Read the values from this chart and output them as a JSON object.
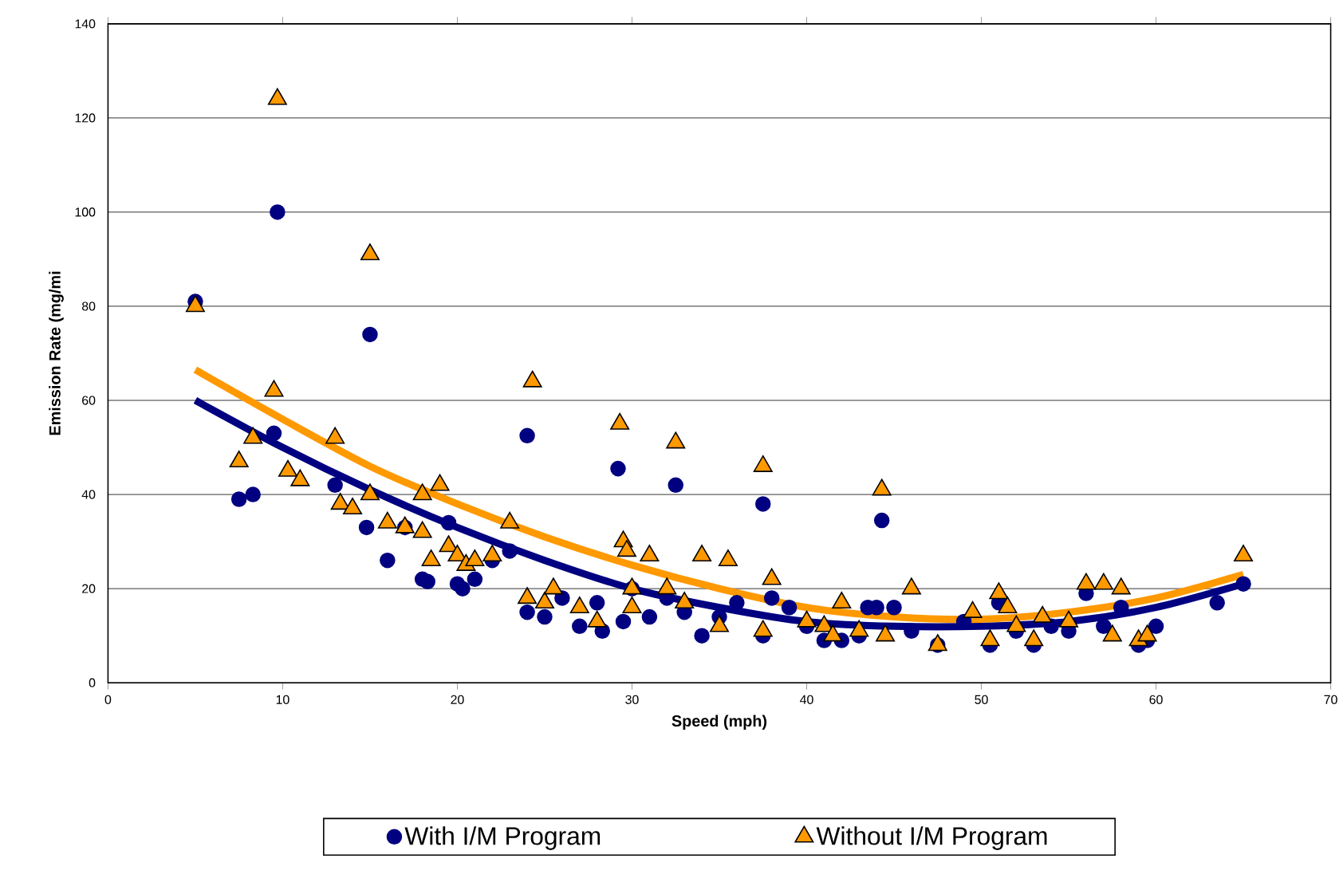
{
  "chart_data": {
    "type": "scatter",
    "xlabel": "Speed (mph)",
    "ylabel": "Emission Rate (mg/mi",
    "xlim": [
      0,
      70
    ],
    "ylim": [
      0,
      140
    ],
    "xticks": [
      0,
      10,
      20,
      30,
      40,
      50,
      60,
      70
    ],
    "yticks": [
      0,
      20,
      40,
      60,
      80,
      100,
      120,
      140
    ],
    "grid": "y",
    "legend": "bottom",
    "series": [
      {
        "name": "With I/M Program",
        "marker": "circle",
        "color": "#000080",
        "x": [
          5,
          7.5,
          8.3,
          9.5,
          9.7,
          15,
          24,
          29.2,
          32.5,
          37.5,
          44.3,
          13,
          14.8,
          16,
          17,
          18,
          18.3,
          19.5,
          20,
          20.3,
          21,
          22,
          23,
          24,
          25,
          26,
          27,
          28,
          28.3,
          29.5,
          30,
          31,
          32,
          33,
          34,
          35,
          36,
          37.5,
          38,
          39,
          40,
          41,
          42,
          43,
          43.5,
          44,
          45,
          46,
          47.5,
          49,
          50.5,
          51,
          52,
          53,
          54,
          55,
          56,
          57,
          58,
          59,
          59.5,
          60,
          63.5,
          65
        ],
        "values": [
          81,
          39,
          40,
          53,
          100,
          74,
          52.5,
          45.5,
          42,
          38,
          34.5,
          42,
          33,
          26,
          33,
          22,
          21.5,
          34,
          21,
          20,
          22,
          26,
          28,
          15,
          14,
          18,
          12,
          17,
          11,
          13,
          20,
          14,
          18,
          15,
          10,
          14,
          17,
          10,
          18,
          16,
          12,
          9,
          9,
          10,
          16,
          16,
          16,
          11,
          8,
          13,
          8,
          17,
          11,
          8,
          12,
          11,
          19,
          12,
          16,
          8,
          9,
          12,
          17,
          21
        ]
      },
      {
        "name": "Without I/M Program",
        "marker": "triangle",
        "color": "#ff9900",
        "x": [
          5,
          7.5,
          8.3,
          9.5,
          9.7,
          10.3,
          11,
          13,
          13.3,
          14,
          15,
          15,
          16,
          17,
          18,
          18,
          18.5,
          19,
          19.5,
          20,
          20.5,
          21,
          22,
          23,
          24,
          24.3,
          25,
          25.5,
          27,
          28,
          29.3,
          29.5,
          29.7,
          30,
          30,
          31,
          32,
          32.5,
          33,
          34,
          35,
          35.5,
          37.5,
          37.5,
          38,
          40,
          41,
          42,
          41.5,
          43,
          44.3,
          44.5,
          46,
          47.5,
          49.5,
          50.5,
          51,
          51.5,
          52,
          53,
          53.5,
          55,
          56,
          57,
          57.5,
          58,
          59,
          59.5,
          65
        ],
        "values": [
          80,
          47,
          52,
          62,
          124,
          45,
          43,
          52,
          38,
          37,
          91,
          40,
          34,
          33,
          32,
          40,
          26,
          42,
          29,
          27,
          25,
          26,
          27,
          34,
          18,
          64,
          17,
          20,
          16,
          13,
          55,
          30,
          28,
          16,
          20,
          27,
          20,
          51,
          17,
          27,
          12,
          26,
          46,
          11,
          22,
          13,
          12,
          17,
          10,
          11,
          41,
          10,
          20,
          8,
          15,
          9,
          19,
          16,
          12,
          9,
          14,
          13,
          21,
          21,
          10,
          20,
          9,
          10,
          27
        ]
      },
      {
        "type": "line",
        "marker": "none",
        "color": "#000080",
        "x": [
          5,
          10,
          15,
          20,
          25,
          30,
          35,
          40,
          45,
          50,
          55,
          60,
          65
        ],
        "values": [
          60,
          50,
          41,
          33,
          26,
          20,
          16,
          13,
          12,
          12,
          13,
          16,
          21
        ]
      },
      {
        "type": "line",
        "marker": "none",
        "color": "#ff9900",
        "x": [
          5,
          10,
          15,
          20,
          25,
          30,
          35,
          40,
          45,
          50,
          55,
          60,
          65
        ],
        "values": [
          66.5,
          56,
          46,
          38,
          31,
          25,
          20,
          16,
          14,
          13.5,
          15,
          18,
          23
        ]
      }
    ]
  }
}
